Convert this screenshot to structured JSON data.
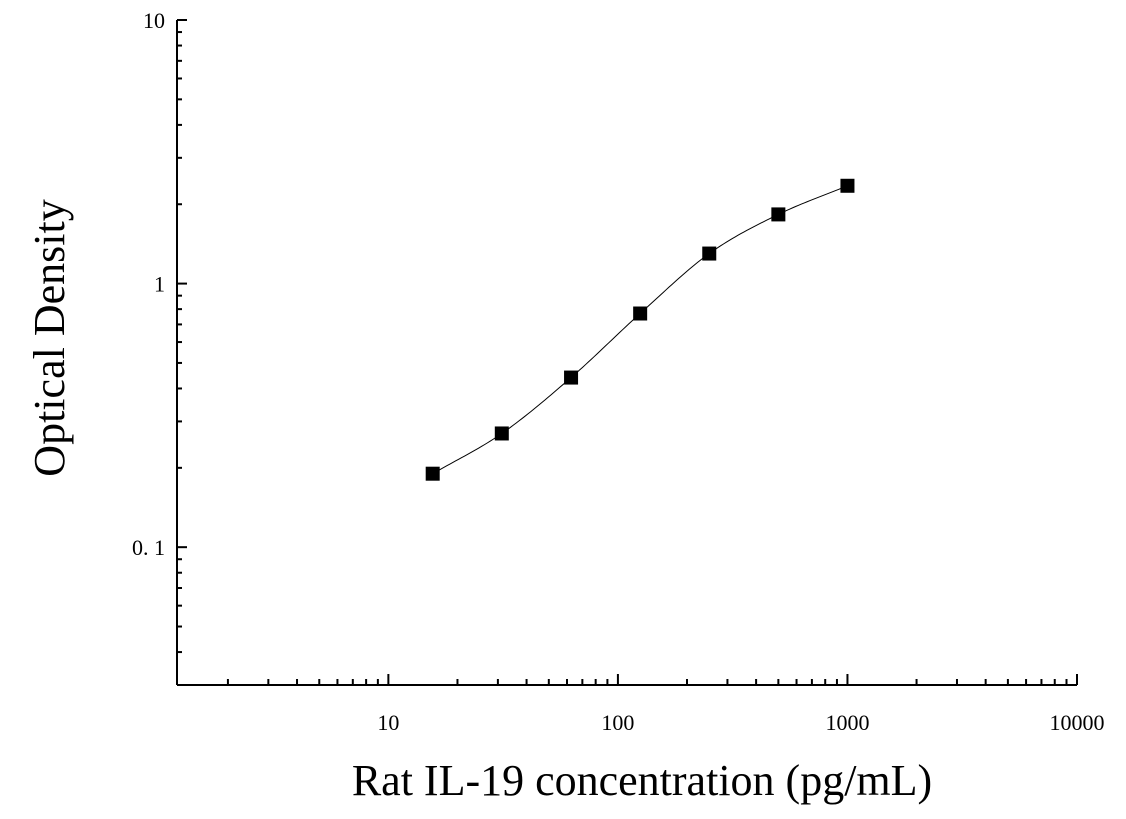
{
  "chart_data": {
    "type": "scatter",
    "title": "",
    "xlabel": "Rat IL-19 concentration (pg/mL)",
    "ylabel": "Optical Density",
    "x_scale": "log",
    "y_scale": "log",
    "xlim": [
      1.2,
      10000
    ],
    "ylim": [
      0.03,
      10
    ],
    "x_ticks": [
      {
        "value": 10,
        "label": "10"
      },
      {
        "value": 100,
        "label": "100"
      },
      {
        "value": 1000,
        "label": "1000"
      },
      {
        "value": 10000,
        "label": "10000"
      }
    ],
    "y_ticks": [
      {
        "value": 0.1,
        "label": "0. 1"
      },
      {
        "value": 1,
        "label": "1"
      },
      {
        "value": 10,
        "label": "10"
      }
    ],
    "grid": false,
    "legend": null,
    "colors": {
      "marker": "#000000",
      "curve": "#000000",
      "axes": "#000000",
      "background": "#ffffff"
    },
    "series": [
      {
        "marker": "square",
        "fit_curve": true,
        "points": [
          {
            "x": 15.6,
            "y": 0.19
          },
          {
            "x": 31.2,
            "y": 0.27
          },
          {
            "x": 62.5,
            "y": 0.44
          },
          {
            "x": 125,
            "y": 0.77
          },
          {
            "x": 250,
            "y": 1.3
          },
          {
            "x": 500,
            "y": 1.83
          },
          {
            "x": 1000,
            "y": 2.35
          }
        ]
      }
    ]
  }
}
